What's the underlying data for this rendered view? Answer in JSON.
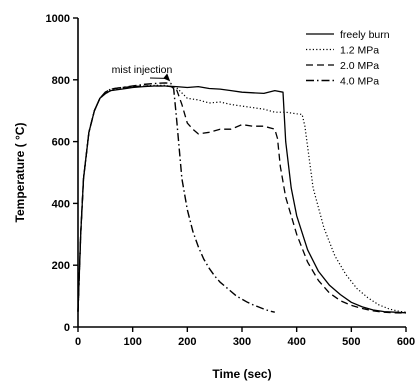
{
  "chart_data": {
    "type": "line",
    "title": "",
    "xlabel": "Time (sec)",
    "ylabel": "Temperature ( °C)",
    "xlim": [
      0,
      600
    ],
    "ylim": [
      0,
      1000
    ],
    "xticks": [
      0,
      100,
      200,
      300,
      400,
      500,
      600
    ],
    "yticks": [
      0,
      200,
      400,
      600,
      800,
      1000
    ],
    "grid": false,
    "legend_position": "top-right",
    "annotations": [
      {
        "text": "mist injection",
        "x": 165,
        "y": 785
      }
    ],
    "series": [
      {
        "name": "freely burn",
        "style": "solid",
        "x": [
          0,
          5,
          10,
          20,
          30,
          40,
          50,
          60,
          80,
          100,
          120,
          140,
          160,
          180,
          200,
          220,
          240,
          260,
          280,
          300,
          320,
          340,
          360,
          375,
          380,
          390,
          400,
          420,
          440,
          460,
          480,
          500,
          520,
          540,
          560,
          580,
          600
        ],
        "y": [
          50,
          300,
          480,
          630,
          700,
          740,
          755,
          765,
          770,
          775,
          778,
          780,
          780,
          778,
          775,
          778,
          772,
          770,
          765,
          760,
          758,
          756,
          765,
          760,
          600,
          450,
          360,
          250,
          180,
          135,
          105,
          80,
          65,
          55,
          50,
          48,
          46
        ]
      },
      {
        "name": "1.2 MPa",
        "style": "dotted",
        "x": [
          0,
          5,
          10,
          20,
          30,
          40,
          50,
          60,
          80,
          100,
          120,
          140,
          160,
          180,
          200,
          220,
          240,
          260,
          280,
          300,
          320,
          340,
          360,
          380,
          400,
          410,
          415,
          430,
          450,
          470,
          490,
          510,
          530,
          550,
          570,
          590,
          600
        ],
        "y": [
          50,
          300,
          480,
          630,
          700,
          740,
          755,
          765,
          772,
          778,
          780,
          782,
          782,
          775,
          740,
          735,
          725,
          728,
          720,
          715,
          710,
          705,
          695,
          695,
          690,
          688,
          650,
          450,
          320,
          230,
          170,
          125,
          95,
          72,
          58,
          50,
          48
        ]
      },
      {
        "name": "2.0 MPa",
        "style": "dashed",
        "x": [
          0,
          5,
          10,
          20,
          30,
          40,
          50,
          60,
          80,
          100,
          120,
          140,
          160,
          170,
          180,
          190,
          200,
          210,
          220,
          240,
          260,
          280,
          300,
          320,
          340,
          360,
          365,
          370,
          380,
          400,
          420,
          440,
          460,
          480,
          500,
          520,
          540,
          560,
          580,
          600
        ],
        "y": [
          50,
          300,
          480,
          630,
          700,
          740,
          760,
          770,
          775,
          778,
          780,
          780,
          780,
          778,
          770,
          720,
          660,
          640,
          625,
          630,
          640,
          640,
          655,
          650,
          650,
          640,
          610,
          520,
          420,
          300,
          210,
          150,
          110,
          85,
          70,
          60,
          52,
          48,
          46,
          45
        ]
      },
      {
        "name": "4.0 MPa",
        "style": "dash-dot",
        "x": [
          0,
          5,
          10,
          20,
          30,
          40,
          50,
          60,
          80,
          100,
          120,
          140,
          160,
          170,
          175,
          180,
          190,
          200,
          210,
          220,
          230,
          240,
          250,
          260,
          270,
          280,
          290,
          300,
          310,
          320,
          330,
          340,
          350,
          360
        ],
        "y": [
          50,
          300,
          480,
          630,
          700,
          740,
          760,
          770,
          775,
          780,
          785,
          788,
          790,
          788,
          770,
          680,
          480,
          380,
          310,
          260,
          220,
          190,
          165,
          145,
          130,
          115,
          100,
          90,
          80,
          72,
          65,
          58,
          52,
          48
        ]
      }
    ]
  }
}
